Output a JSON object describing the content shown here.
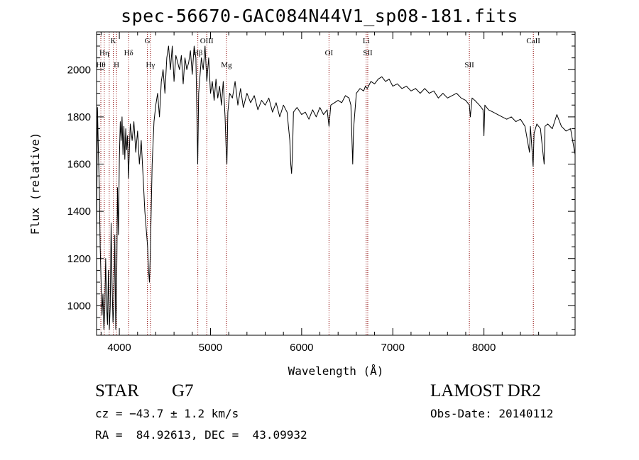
{
  "title": "spec-56670-GAC084N44V1_sp08-181.fits",
  "footer": {
    "object_class": "STAR",
    "subclass": "G7",
    "survey": "LAMOST DR2",
    "cz": "cz = −43.7 ± 1.2 km/s",
    "obs_date": "Obs-Date: 20140112",
    "coords": "RA =  84.92613, DEC =  43.09932"
  },
  "colors": {
    "line_markers": "#8b0000",
    "spectrum": "#000000",
    "axes": "#000000"
  },
  "chart_data": {
    "type": "line",
    "title": "spec-56670-GAC084N44V1_sp08-181.fits",
    "xlabel": "Wavelength (Å)",
    "ylabel": "Flux (relative)",
    "xlim": [
      3750,
      9000
    ],
    "ylim": [
      875,
      2160
    ],
    "xticks": [
      4000,
      5000,
      6000,
      7000,
      8000
    ],
    "yticks": [
      1000,
      1200,
      1400,
      1600,
      1800,
      2000
    ],
    "grid": false,
    "series": [
      {
        "values": [
          [
            3750,
            1300
          ],
          [
            3760,
            1840
          ],
          [
            3770,
            1650
          ],
          [
            3780,
            1500
          ],
          [
            3790,
            1250
          ],
          [
            3800,
            1100
          ],
          [
            3810,
            960
          ],
          [
            3820,
            1050
          ],
          [
            3830,
            900
          ],
          [
            3840,
            980
          ],
          [
            3850,
            1200
          ],
          [
            3860,
            1000
          ],
          [
            3870,
            920
          ],
          [
            3880,
            1150
          ],
          [
            3890,
            900
          ],
          [
            3900,
            1000
          ],
          [
            3910,
            1350
          ],
          [
            3920,
            1100
          ],
          [
            3930,
            930
          ],
          [
            3940,
            1000
          ],
          [
            3950,
            1300
          ],
          [
            3960,
            900
          ],
          [
            3970,
            1050
          ],
          [
            3980,
            1500
          ],
          [
            3990,
            1300
          ],
          [
            4000,
            1620
          ],
          [
            4010,
            1780
          ],
          [
            4020,
            1700
          ],
          [
            4030,
            1800
          ],
          [
            4040,
            1640
          ],
          [
            4050,
            1760
          ],
          [
            4060,
            1620
          ],
          [
            4070,
            1750
          ],
          [
            4080,
            1660
          ],
          [
            4090,
            1720
          ],
          [
            4100,
            1540
          ],
          [
            4120,
            1770
          ],
          [
            4140,
            1700
          ],
          [
            4160,
            1780
          ],
          [
            4180,
            1650
          ],
          [
            4200,
            1740
          ],
          [
            4220,
            1600
          ],
          [
            4240,
            1700
          ],
          [
            4260,
            1550
          ],
          [
            4280,
            1400
          ],
          [
            4300,
            1300
          ],
          [
            4310,
            1250
          ],
          [
            4320,
            1150
          ],
          [
            4330,
            1100
          ],
          [
            4340,
            1220
          ],
          [
            4360,
            1600
          ],
          [
            4380,
            1780
          ],
          [
            4400,
            1850
          ],
          [
            4420,
            1900
          ],
          [
            4440,
            1800
          ],
          [
            4460,
            1950
          ],
          [
            4480,
            2000
          ],
          [
            4500,
            1900
          ],
          [
            4520,
            2050
          ],
          [
            4540,
            2100
          ],
          [
            4560,
            2000
          ],
          [
            4580,
            2100
          ],
          [
            4600,
            1950
          ],
          [
            4620,
            2060
          ],
          [
            4640,
            2030
          ],
          [
            4660,
            2000
          ],
          [
            4680,
            2060
          ],
          [
            4700,
            1940
          ],
          [
            4720,
            2050
          ],
          [
            4740,
            2000
          ],
          [
            4760,
            2030
          ],
          [
            4780,
            2080
          ],
          [
            4800,
            1980
          ],
          [
            4820,
            2100
          ],
          [
            4840,
            2050
          ],
          [
            4860,
            1600
          ],
          [
            4870,
            1900
          ],
          [
            4900,
            2050
          ],
          [
            4920,
            2000
          ],
          [
            4940,
            2100
          ],
          [
            4960,
            1950
          ],
          [
            4980,
            2050
          ],
          [
            5000,
            1900
          ],
          [
            5020,
            1950
          ],
          [
            5040,
            1870
          ],
          [
            5060,
            1960
          ],
          [
            5080,
            1880
          ],
          [
            5100,
            1930
          ],
          [
            5120,
            1850
          ],
          [
            5140,
            1950
          ],
          [
            5160,
            1800
          ],
          [
            5170,
            1680
          ],
          [
            5180,
            1600
          ],
          [
            5190,
            1820
          ],
          [
            5210,
            1900
          ],
          [
            5240,
            1880
          ],
          [
            5270,
            1950
          ],
          [
            5300,
            1850
          ],
          [
            5330,
            1920
          ],
          [
            5360,
            1840
          ],
          [
            5400,
            1900
          ],
          [
            5440,
            1860
          ],
          [
            5480,
            1890
          ],
          [
            5520,
            1830
          ],
          [
            5560,
            1870
          ],
          [
            5600,
            1850
          ],
          [
            5640,
            1880
          ],
          [
            5680,
            1820
          ],
          [
            5720,
            1860
          ],
          [
            5760,
            1800
          ],
          [
            5800,
            1850
          ],
          [
            5840,
            1820
          ],
          [
            5870,
            1700
          ],
          [
            5880,
            1600
          ],
          [
            5890,
            1560
          ],
          [
            5900,
            1650
          ],
          [
            5910,
            1820
          ],
          [
            5950,
            1840
          ],
          [
            6000,
            1810
          ],
          [
            6040,
            1820
          ],
          [
            6080,
            1790
          ],
          [
            6120,
            1830
          ],
          [
            6160,
            1800
          ],
          [
            6200,
            1840
          ],
          [
            6240,
            1810
          ],
          [
            6280,
            1830
          ],
          [
            6300,
            1760
          ],
          [
            6320,
            1850
          ],
          [
            6360,
            1860
          ],
          [
            6400,
            1870
          ],
          [
            6440,
            1860
          ],
          [
            6480,
            1890
          ],
          [
            6520,
            1880
          ],
          [
            6540,
            1850
          ],
          [
            6560,
            1600
          ],
          [
            6570,
            1750
          ],
          [
            6600,
            1900
          ],
          [
            6640,
            1920
          ],
          [
            6680,
            1910
          ],
          [
            6700,
            1930
          ],
          [
            6720,
            1920
          ],
          [
            6760,
            1950
          ],
          [
            6800,
            1940
          ],
          [
            6840,
            1960
          ],
          [
            6880,
            1970
          ],
          [
            6920,
            1950
          ],
          [
            6960,
            1960
          ],
          [
            7000,
            1930
          ],
          [
            7050,
            1940
          ],
          [
            7100,
            1920
          ],
          [
            7150,
            1930
          ],
          [
            7200,
            1910
          ],
          [
            7250,
            1920
          ],
          [
            7300,
            1900
          ],
          [
            7350,
            1920
          ],
          [
            7400,
            1900
          ],
          [
            7450,
            1910
          ],
          [
            7500,
            1880
          ],
          [
            7550,
            1900
          ],
          [
            7600,
            1880
          ],
          [
            7650,
            1890
          ],
          [
            7700,
            1900
          ],
          [
            7750,
            1880
          ],
          [
            7800,
            1870
          ],
          [
            7840,
            1850
          ],
          [
            7850,
            1800
          ],
          [
            7870,
            1880
          ],
          [
            7900,
            1870
          ],
          [
            7950,
            1850
          ],
          [
            7990,
            1830
          ],
          [
            8000,
            1720
          ],
          [
            8010,
            1850
          ],
          [
            8050,
            1830
          ],
          [
            8100,
            1820
          ],
          [
            8150,
            1810
          ],
          [
            8200,
            1800
          ],
          [
            8250,
            1790
          ],
          [
            8300,
            1800
          ],
          [
            8350,
            1780
          ],
          [
            8400,
            1790
          ],
          [
            8450,
            1760
          ],
          [
            8500,
            1650
          ],
          [
            8510,
            1760
          ],
          [
            8540,
            1590
          ],
          [
            8550,
            1730
          ],
          [
            8580,
            1770
          ],
          [
            8620,
            1750
          ],
          [
            8660,
            1600
          ],
          [
            8670,
            1760
          ],
          [
            8700,
            1770
          ],
          [
            8750,
            1750
          ],
          [
            8800,
            1810
          ],
          [
            8850,
            1760
          ],
          [
            8900,
            1740
          ],
          [
            8950,
            1750
          ],
          [
            9000,
            1640
          ]
        ]
      }
    ],
    "annotations": [
      {
        "label": "Hη",
        "x": 3835,
        "row": 1
      },
      {
        "label": "Hθ",
        "x": 3797,
        "row": 2
      },
      {
        "label": "K",
        "x": 3934,
        "row": 0
      },
      {
        "label": "H",
        "x": 3969,
        "row": 2
      },
      {
        "label": "Hδ",
        "x": 4102,
        "row": 1
      },
      {
        "label": "G",
        "x": 4308,
        "row": 0
      },
      {
        "label": "Hγ",
        "x": 4341,
        "row": 2
      },
      {
        "label": "OIII",
        "x": 4959,
        "row": 0
      },
      {
        "label": "Hβ",
        "x": 4861,
        "row": 1
      },
      {
        "label": "Mg",
        "x": 5175,
        "row": 2
      },
      {
        "label": "OI",
        "x": 6300,
        "row": 1
      },
      {
        "label": "Li",
        "x": 6708,
        "row": 0
      },
      {
        "label": "SII",
        "x": 6725,
        "row": 1
      },
      {
        "label": "SII",
        "x": 7840,
        "row": 2
      },
      {
        "label": "CaII",
        "x": 8542,
        "row": 0
      }
    ],
    "line_markers": [
      3797,
      3835,
      3889,
      3934,
      3969,
      4102,
      4308,
      4341,
      4861,
      4959,
      5175,
      6300,
      6708,
      6725,
      7840,
      8542
    ]
  }
}
